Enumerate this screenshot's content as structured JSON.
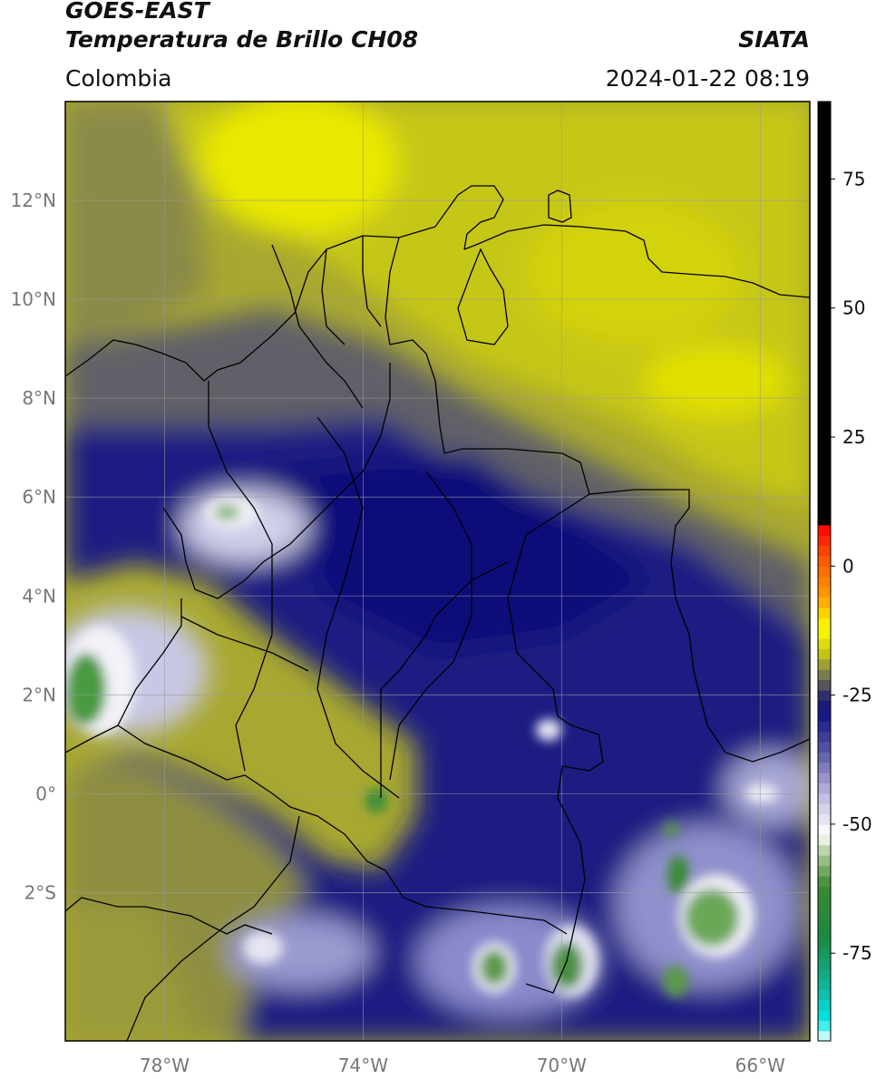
{
  "header": {
    "satellite": "GOES-EAST",
    "product": "Temperatura de Brillo CH08",
    "region": "Colombia",
    "agency": "SIATA",
    "timestamp": "2024-01-22 08:19"
  },
  "map": {
    "lon_range": [
      -80.0,
      -65.0
    ],
    "lat_range": [
      -5.0,
      14.0
    ],
    "lat_ticks": [
      {
        "value": 12,
        "label": "12°N"
      },
      {
        "value": 10,
        "label": "10°N"
      },
      {
        "value": 8,
        "label": "8°N"
      },
      {
        "value": 6,
        "label": "6°N"
      },
      {
        "value": 4,
        "label": "4°N"
      },
      {
        "value": 2,
        "label": "2°N"
      },
      {
        "value": 0,
        "label": "0°"
      },
      {
        "value": -2,
        "label": "2°S"
      }
    ],
    "lon_ticks": [
      {
        "value": -78,
        "label": "78°W"
      },
      {
        "value": -74,
        "label": "74°W"
      },
      {
        "value": -70,
        "label": "70°W"
      },
      {
        "value": -66,
        "label": "66°W"
      }
    ],
    "grid": true
  },
  "colorbar": {
    "range": [
      -92,
      90
    ],
    "ticks": [
      {
        "value": 75,
        "label": "75"
      },
      {
        "value": 50,
        "label": "50"
      },
      {
        "value": 25,
        "label": "25"
      },
      {
        "value": 0,
        "label": "0"
      },
      {
        "value": -25,
        "label": "-25"
      },
      {
        "value": -50,
        "label": "-50"
      },
      {
        "value": -75,
        "label": "-75"
      }
    ],
    "stops": [
      {
        "value": -92,
        "color": "#ffffff"
      },
      {
        "value": -88,
        "color": "#00e8e8"
      },
      {
        "value": -82,
        "color": "#10b8a0"
      },
      {
        "value": -72,
        "color": "#1a8a40"
      },
      {
        "value": -62,
        "color": "#3a8a30"
      },
      {
        "value": -56,
        "color": "#a8c890"
      },
      {
        "value": -52,
        "color": "#ffffff"
      },
      {
        "value": -44,
        "color": "#b8b8e0"
      },
      {
        "value": -36,
        "color": "#5a5aa8"
      },
      {
        "value": -28,
        "color": "#101080"
      },
      {
        "value": -25,
        "color": "#30306a"
      },
      {
        "value": -21,
        "color": "#7a7a50"
      },
      {
        "value": -17,
        "color": "#c4c418"
      },
      {
        "value": -12,
        "color": "#ffff00"
      },
      {
        "value": -6,
        "color": "#ffa000"
      },
      {
        "value": 2,
        "color": "#ff5000"
      },
      {
        "value": 8,
        "color": "#ff0000"
      },
      {
        "value": 8.01,
        "color": "#000000"
      },
      {
        "value": 90,
        "color": "#000000"
      }
    ]
  }
}
